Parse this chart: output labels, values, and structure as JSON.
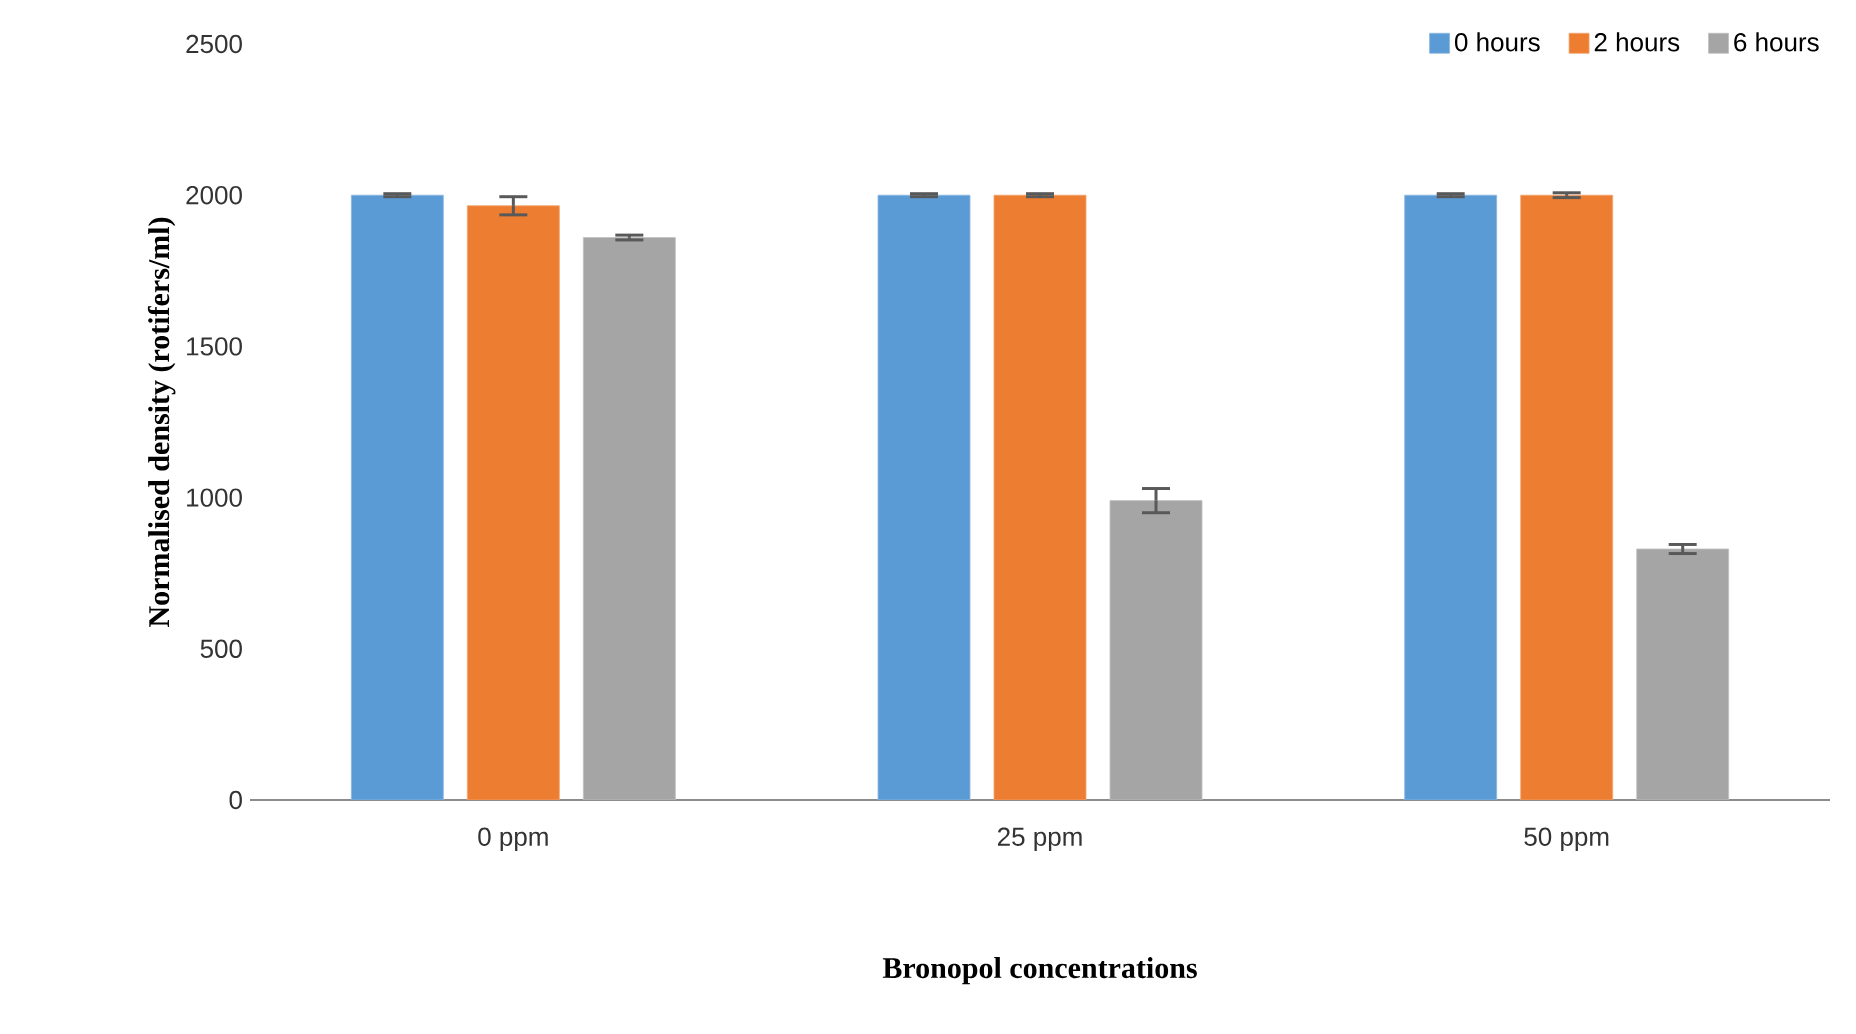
{
  "chart_data": {
    "type": "bar",
    "xlabel": "Bronopol concentrations",
    "ylabel": "Normalised density (rotifers/ml)",
    "categories": [
      "0 ppm",
      "25 ppm",
      "50 ppm"
    ],
    "series": [
      {
        "name": "0 hours",
        "color": "#5b9bd5",
        "values": [
          2000,
          2000,
          2000
        ],
        "errors": [
          5,
          5,
          5
        ]
      },
      {
        "name": "2 hours",
        "color": "#ed7d31",
        "values": [
          1965,
          2000,
          2000
        ],
        "errors": [
          30,
          5,
          8
        ]
      },
      {
        "name": "6 hours",
        "color": "#a5a5a5",
        "values": [
          1860,
          990,
          830
        ],
        "errors": [
          8,
          40,
          15
        ]
      }
    ],
    "ylim": [
      0,
      2500
    ],
    "yticks": [
      0,
      500,
      1000,
      1500,
      2000,
      2500
    ],
    "legend": "top right",
    "grid": false
  }
}
